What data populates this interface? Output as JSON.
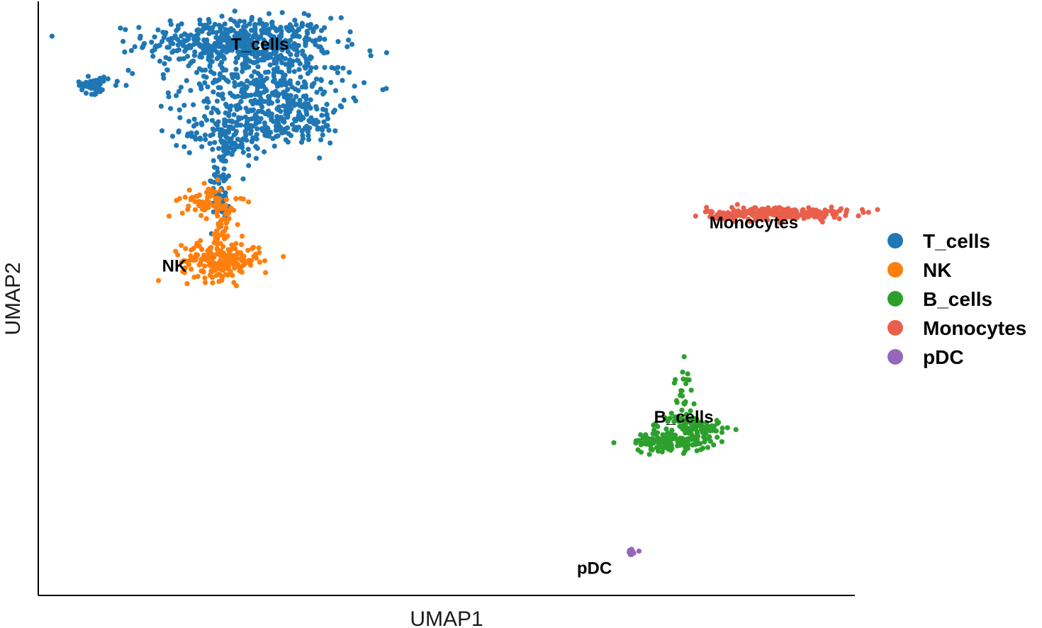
{
  "chart_data": {
    "type": "scatter",
    "title": "",
    "xlabel": "UMAP1",
    "ylabel": "UMAP2",
    "xlim": [
      -6,
      15
    ],
    "ylim": [
      -12,
      10
    ],
    "ticks_shown": false,
    "grid": false,
    "legend_position": "right",
    "series": [
      {
        "name": "T_cells",
        "color": "#1f77b4",
        "label": "T_cells",
        "label_at": [
          -0.3,
          8.2
        ],
        "blobs": [
          {
            "cx": -0.8,
            "cy": 8.5,
            "sx": 1.2,
            "sy": 0.45,
            "n": 480
          },
          {
            "cx": -0.2,
            "cy": 6.9,
            "sx": 1.05,
            "sy": 0.9,
            "n": 360
          },
          {
            "cx": -1.1,
            "cy": 5.1,
            "sx": 0.55,
            "sy": 0.45,
            "n": 140
          },
          {
            "cx": 0.5,
            "cy": 5.6,
            "sx": 0.7,
            "sy": 0.45,
            "n": 140
          },
          {
            "cx": -1.3,
            "cy": 3.3,
            "sx": 0.12,
            "sy": 0.8,
            "n": 55
          },
          {
            "cx": -4.6,
            "cy": 6.9,
            "sx": 0.2,
            "sy": 0.15,
            "n": 50
          },
          {
            "cx": -3.6,
            "cy": 7.2,
            "sx": 0.5,
            "sy": 0.15,
            "n": 8
          }
        ]
      },
      {
        "name": "NK",
        "color": "#ff7f0e",
        "label": "NK",
        "label_at": [
          -2.5,
          0.0
        ],
        "blobs": [
          {
            "cx": -1.3,
            "cy": 0.4,
            "sx": 0.5,
            "sy": 0.35,
            "n": 220
          },
          {
            "cx": -1.6,
            "cy": 2.6,
            "sx": 0.35,
            "sy": 0.3,
            "n": 80
          },
          {
            "cx": -1.3,
            "cy": 1.5,
            "sx": 0.12,
            "sy": 0.35,
            "n": 30
          }
        ]
      },
      {
        "name": "B_cells",
        "color": "#2ca02c",
        "label": "B_cells",
        "label_at": [
          10.6,
          -5.6
        ],
        "blobs": [
          {
            "cx": 10.3,
            "cy": -6.3,
            "sx": 0.5,
            "sy": 0.18,
            "n": 150
          },
          {
            "cx": 10.8,
            "cy": -5.7,
            "sx": 0.45,
            "sy": 0.18,
            "n": 70
          },
          {
            "cx": 10.6,
            "cy": -4.6,
            "sx": 0.12,
            "sy": 0.5,
            "n": 30
          }
        ]
      },
      {
        "name": "Monocytes",
        "color": "#e8604c",
        "label": "Monocytes",
        "label_at": [
          12.4,
          1.6
        ],
        "blobs": [
          {
            "cx": 13.0,
            "cy": 2.15,
            "sx": 0.9,
            "sy": 0.12,
            "n": 260
          },
          {
            "cx": 11.8,
            "cy": 2.05,
            "sx": 0.2,
            "sy": 0.05,
            "n": 12
          }
        ]
      },
      {
        "name": "pDC",
        "color": "#9467bd",
        "label": "pDC",
        "label_at": [
          8.3,
          -11.2
        ],
        "blobs": [
          {
            "cx": 9.2,
            "cy": -10.4,
            "sx": 0.09,
            "sy": 0.07,
            "n": 14
          }
        ]
      }
    ]
  }
}
